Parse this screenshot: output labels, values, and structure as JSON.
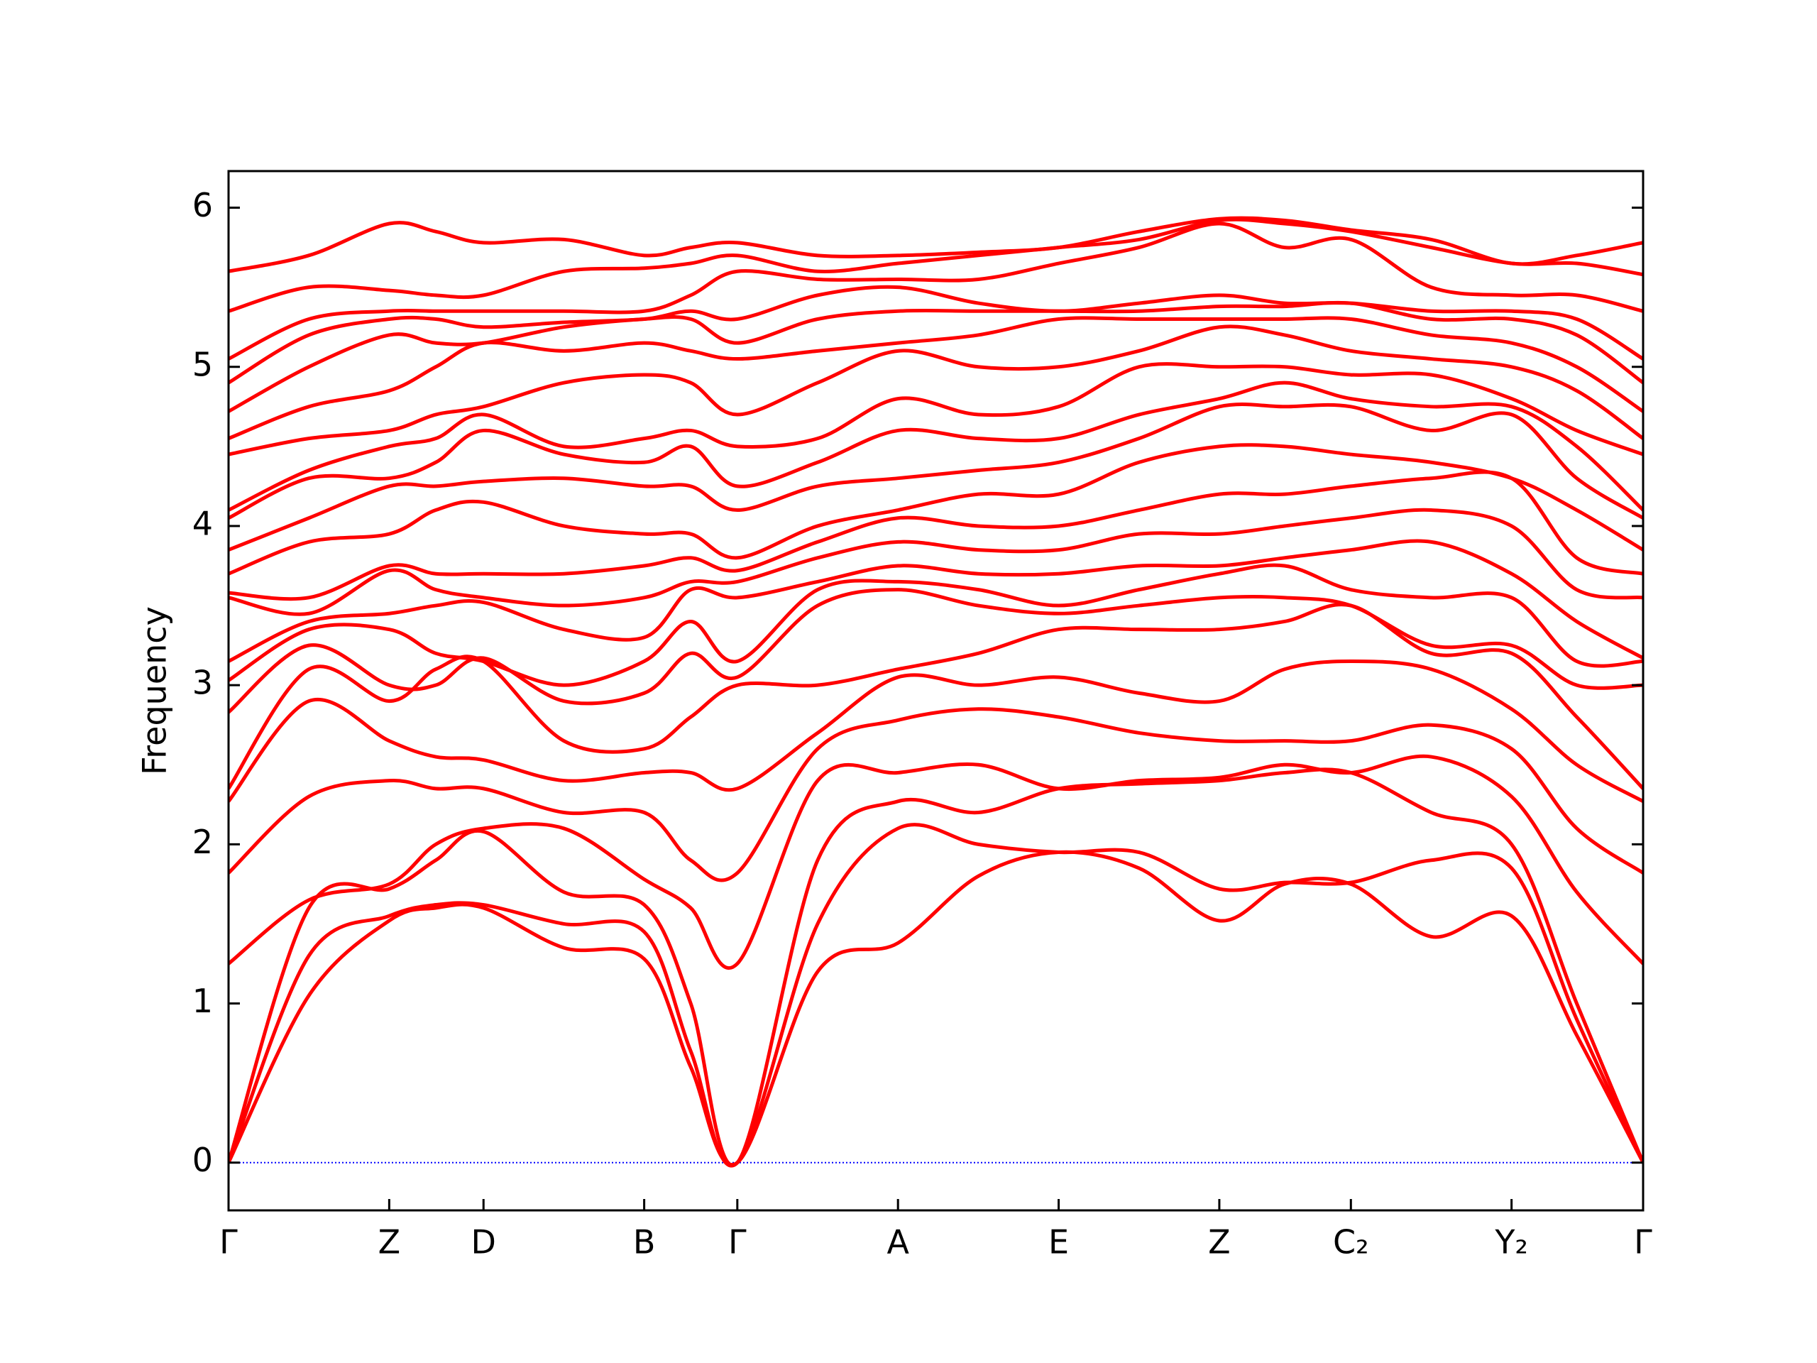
{
  "chart_data": {
    "type": "line",
    "y_label": "Frequency",
    "color": "#ff0000",
    "x": [
      0,
      0.69,
      1.38,
      1.78,
      2.19,
      2.88,
      3.57,
      3.97,
      4.37,
      5.06,
      5.75,
      6.44,
      7.13,
      7.82,
      8.51,
      9.07,
      9.64,
      10.33,
      11.02,
      11.58,
      12.15
    ],
    "xlim": [
      0,
      12.15
    ],
    "xticks": [
      {
        "value": 0,
        "label": "Γ"
      },
      {
        "value": 1.38,
        "label": "Z"
      },
      {
        "value": 2.19,
        "label": "D"
      },
      {
        "value": 3.57,
        "label": "B"
      },
      {
        "value": 4.37,
        "label": "Γ"
      },
      {
        "value": 5.75,
        "label": "A"
      },
      {
        "value": 7.13,
        "label": "E"
      },
      {
        "value": 8.51,
        "label": "Z"
      },
      {
        "value": 9.64,
        "label": "C₂"
      },
      {
        "value": 11.02,
        "label": "Y₂"
      },
      {
        "value": 12.15,
        "label": "Γ"
      }
    ],
    "ylim": [
      -0.3,
      6.23
    ],
    "yticks": [
      0,
      1,
      2,
      3,
      4,
      5,
      6
    ],
    "hline": {
      "y": 0,
      "color": "#0000ff",
      "style": "dotted"
    },
    "series": [
      {
        "values": [
          0,
          1.05,
          1.52,
          1.6,
          1.6,
          1.35,
          1.28,
          0.6,
          0,
          1.2,
          1.38,
          1.8,
          1.95,
          1.85,
          1.52,
          1.75,
          1.75,
          1.42,
          1.55,
          0.8,
          0
        ]
      },
      {
        "values": [
          0,
          1.3,
          1.55,
          1.62,
          1.62,
          1.5,
          1.45,
          0.7,
          0,
          1.5,
          2.1,
          2.0,
          1.95,
          1.95,
          1.72,
          1.76,
          1.76,
          1.9,
          1.85,
          0.9,
          0
        ]
      },
      {
        "values": [
          0,
          1.6,
          1.72,
          1.9,
          2.08,
          1.7,
          1.62,
          1.0,
          0,
          1.9,
          2.27,
          2.2,
          2.35,
          2.38,
          2.4,
          2.45,
          2.45,
          2.2,
          2.0,
          1.0,
          0
        ]
      },
      {
        "values": [
          1.25,
          1.65,
          1.75,
          2.0,
          2.1,
          2.1,
          1.78,
          1.6,
          1.25,
          2.4,
          2.45,
          2.5,
          2.35,
          2.4,
          2.42,
          2.5,
          2.45,
          2.55,
          2.3,
          1.7,
          1.25
        ]
      },
      {
        "values": [
          1.82,
          2.3,
          2.4,
          2.35,
          2.35,
          2.2,
          2.2,
          1.9,
          1.82,
          2.6,
          2.78,
          2.85,
          2.8,
          2.7,
          2.65,
          2.65,
          2.65,
          2.75,
          2.6,
          2.1,
          1.82
        ]
      },
      {
        "values": [
          2.27,
          2.9,
          2.65,
          2.55,
          2.53,
          2.4,
          2.45,
          2.45,
          2.35,
          2.7,
          3.05,
          3.0,
          3.05,
          2.95,
          2.9,
          3.1,
          3.15,
          3.1,
          2.85,
          2.5,
          2.27
        ]
      },
      {
        "values": [
          2.35,
          3.1,
          2.9,
          3.1,
          3.15,
          2.65,
          2.6,
          2.8,
          3.0,
          3.0,
          3.1,
          3.2,
          3.35,
          3.35,
          3.35,
          3.4,
          3.5,
          3.2,
          3.2,
          2.8,
          2.35
        ]
      },
      {
        "values": [
          2.83,
          3.25,
          3.0,
          3.0,
          3.17,
          2.9,
          2.95,
          3.2,
          3.05,
          3.5,
          3.6,
          3.5,
          3.45,
          3.5,
          3.55,
          3.55,
          3.5,
          3.25,
          3.25,
          3.0,
          3.0
        ]
      },
      {
        "values": [
          3.03,
          3.35,
          3.35,
          3.2,
          3.15,
          3.0,
          3.15,
          3.4,
          3.15,
          3.6,
          3.65,
          3.6,
          3.5,
          3.6,
          3.7,
          3.75,
          3.6,
          3.55,
          3.55,
          3.15,
          3.15
        ]
      },
      {
        "values": [
          3.15,
          3.4,
          3.45,
          3.5,
          3.52,
          3.35,
          3.3,
          3.6,
          3.55,
          3.65,
          3.75,
          3.7,
          3.7,
          3.75,
          3.75,
          3.8,
          3.85,
          3.9,
          3.7,
          3.4,
          3.17
        ]
      },
      {
        "values": [
          3.55,
          3.45,
          3.72,
          3.6,
          3.55,
          3.5,
          3.55,
          3.65,
          3.65,
          3.8,
          3.9,
          3.85,
          3.85,
          3.95,
          3.95,
          4.0,
          4.05,
          4.1,
          4.0,
          3.6,
          3.55
        ]
      },
      {
        "values": [
          3.58,
          3.55,
          3.75,
          3.7,
          3.7,
          3.7,
          3.75,
          3.8,
          3.72,
          3.9,
          4.05,
          4.0,
          4.0,
          4.1,
          4.2,
          4.2,
          4.25,
          4.3,
          4.3,
          3.8,
          3.7
        ]
      },
      {
        "values": [
          3.7,
          3.9,
          3.95,
          4.1,
          4.15,
          4.0,
          3.95,
          3.95,
          3.8,
          4.0,
          4.1,
          4.2,
          4.2,
          4.4,
          4.5,
          4.5,
          4.45,
          4.4,
          4.3,
          4.1,
          3.85
        ]
      },
      {
        "values": [
          3.85,
          4.05,
          4.25,
          4.25,
          4.28,
          4.3,
          4.25,
          4.25,
          4.1,
          4.25,
          4.3,
          4.35,
          4.4,
          4.55,
          4.75,
          4.75,
          4.75,
          4.6,
          4.7,
          4.3,
          4.05
        ]
      },
      {
        "values": [
          4.05,
          4.3,
          4.3,
          4.4,
          4.6,
          4.45,
          4.4,
          4.5,
          4.25,
          4.4,
          4.6,
          4.55,
          4.55,
          4.7,
          4.8,
          4.9,
          4.8,
          4.75,
          4.75,
          4.5,
          4.1
        ]
      },
      {
        "values": [
          4.1,
          4.35,
          4.5,
          4.55,
          4.7,
          4.5,
          4.55,
          4.6,
          4.5,
          4.55,
          4.8,
          4.7,
          4.75,
          5.0,
          5.0,
          5.0,
          4.95,
          4.95,
          4.8,
          4.6,
          4.45
        ]
      },
      {
        "values": [
          4.45,
          4.55,
          4.6,
          4.7,
          4.75,
          4.9,
          4.95,
          4.9,
          4.7,
          4.9,
          5.1,
          5.0,
          5.0,
          5.1,
          5.25,
          5.2,
          5.1,
          5.05,
          5.0,
          4.85,
          4.55
        ]
      },
      {
        "values": [
          4.55,
          4.75,
          4.85,
          5.0,
          5.15,
          5.1,
          5.15,
          5.1,
          5.05,
          5.1,
          5.15,
          5.2,
          5.3,
          5.3,
          5.3,
          5.3,
          5.3,
          5.2,
          5.15,
          5.0,
          4.72
        ]
      },
      {
        "values": [
          4.72,
          5.0,
          5.2,
          5.15,
          5.15,
          5.25,
          5.3,
          5.3,
          5.15,
          5.3,
          5.35,
          5.35,
          5.35,
          5.35,
          5.38,
          5.38,
          5.4,
          5.3,
          5.3,
          5.2,
          4.9
        ]
      },
      {
        "values": [
          4.9,
          5.2,
          5.3,
          5.3,
          5.25,
          5.28,
          5.3,
          5.35,
          5.3,
          5.45,
          5.5,
          5.4,
          5.35,
          5.4,
          5.45,
          5.4,
          5.4,
          5.35,
          5.35,
          5.3,
          5.05
        ]
      },
      {
        "values": [
          5.05,
          5.3,
          5.35,
          5.35,
          5.35,
          5.35,
          5.35,
          5.45,
          5.6,
          5.55,
          5.55,
          5.55,
          5.65,
          5.75,
          5.9,
          5.75,
          5.8,
          5.5,
          5.45,
          5.45,
          5.35
        ]
      },
      {
        "values": [
          5.35,
          5.5,
          5.48,
          5.45,
          5.45,
          5.6,
          5.62,
          5.65,
          5.7,
          5.6,
          5.65,
          5.7,
          5.75,
          5.8,
          5.92,
          5.9,
          5.85,
          5.75,
          5.65,
          5.65,
          5.58
        ]
      },
      {
        "values": [
          5.6,
          5.7,
          5.9,
          5.85,
          5.78,
          5.8,
          5.7,
          5.75,
          5.78,
          5.7,
          5.7,
          5.72,
          5.75,
          5.85,
          5.93,
          5.92,
          5.86,
          5.8,
          5.65,
          5.7,
          5.78
        ]
      }
    ]
  }
}
